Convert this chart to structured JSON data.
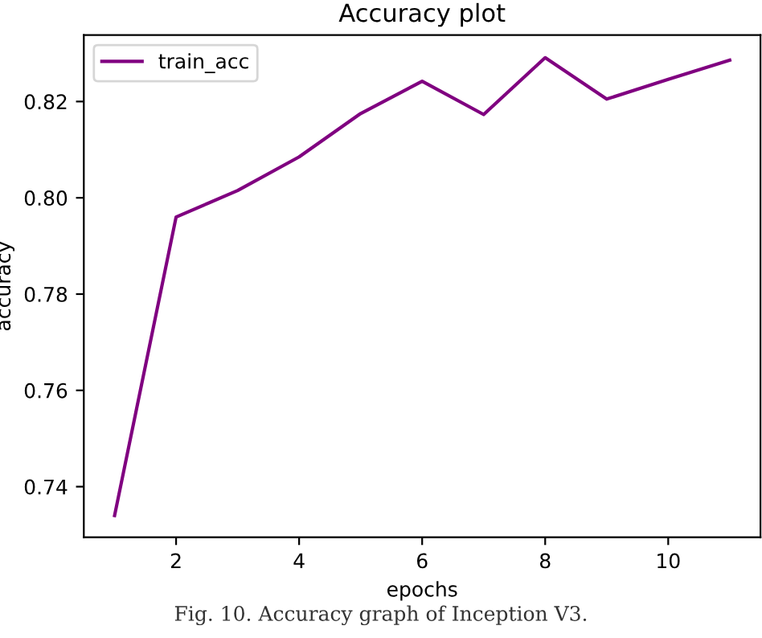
{
  "chart_data": {
    "type": "line",
    "title": "Accuracy plot",
    "xlabel": "epochs",
    "ylabel": "accuracy",
    "x": [
      1,
      2,
      3,
      4,
      5,
      6,
      7,
      8,
      9,
      10,
      11
    ],
    "series": [
      {
        "name": "train_acc",
        "color": "#800080",
        "values": [
          0.734,
          0.796,
          0.8015,
          0.8085,
          0.8175,
          0.8242,
          0.8173,
          0.8291,
          0.8205,
          0.8246,
          0.8286
        ]
      }
    ],
    "xlim": [
      0.5,
      11.5
    ],
    "xticks": [
      2,
      4,
      6,
      8,
      10
    ],
    "ylim": [
      0.7295,
      0.8338
    ],
    "yticks": [
      {
        "value": 0.74,
        "label": "0.74"
      },
      {
        "value": 0.76,
        "label": "0.76"
      },
      {
        "value": 0.78,
        "label": "0.78"
      },
      {
        "value": 0.8,
        "label": "0.80"
      },
      {
        "value": 0.82,
        "label": "0.82"
      }
    ],
    "legend": "top left",
    "grid": false,
    "annotations": [
      "Fig. 10. Accuracy graph of Inception V3."
    ]
  }
}
